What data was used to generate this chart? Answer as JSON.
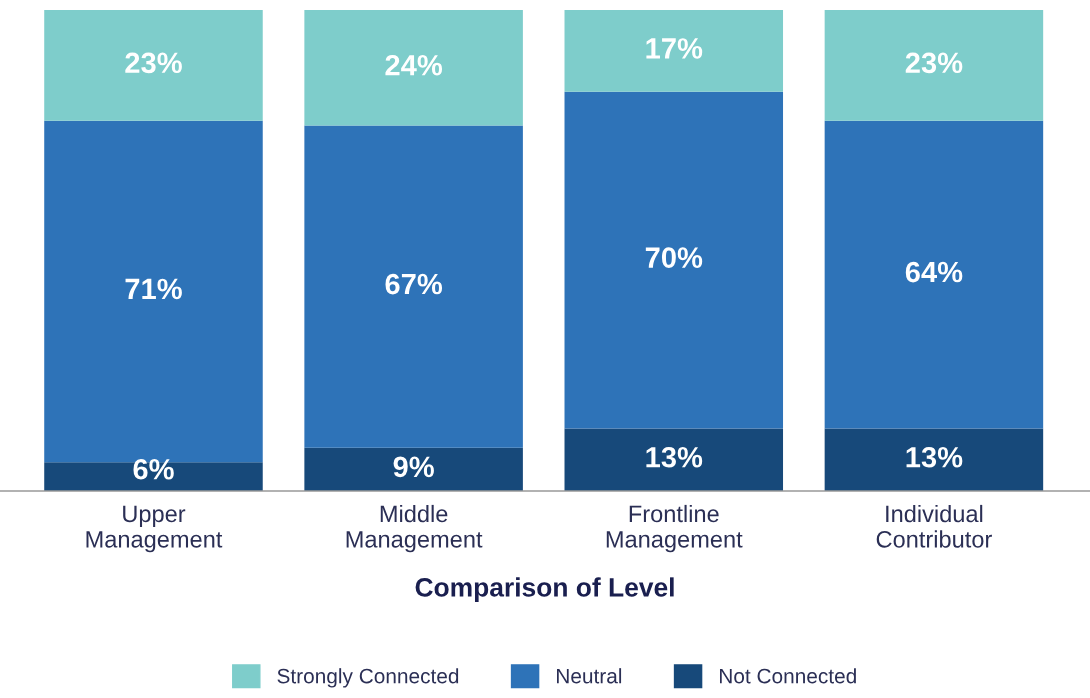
{
  "chart_data": {
    "type": "bar",
    "stacked": true,
    "xlabel": "Comparison of Level",
    "categories": [
      "Upper\nManagement",
      "Middle\nManagement",
      "Frontline\nManagement",
      "Individual\nContributor"
    ],
    "series": [
      {
        "name": "Not Connected",
        "color": "#17497a",
        "values": [
          6,
          9,
          13,
          13
        ],
        "value_labels": [
          "6%",
          "9%",
          "13%",
          "13%"
        ]
      },
      {
        "name": "Neutral",
        "color": "#2e73b8",
        "values": [
          71,
          67,
          70,
          64
        ],
        "value_labels": [
          "71%",
          "67%",
          "70%",
          "64%"
        ]
      },
      {
        "name": "Strongly Connected",
        "color": "#7ecdcb",
        "values": [
          23,
          24,
          17,
          23
        ],
        "value_labels": [
          "23%",
          "24%",
          "17%",
          "23%"
        ]
      }
    ],
    "legend": "bottom",
    "grid": false
  }
}
